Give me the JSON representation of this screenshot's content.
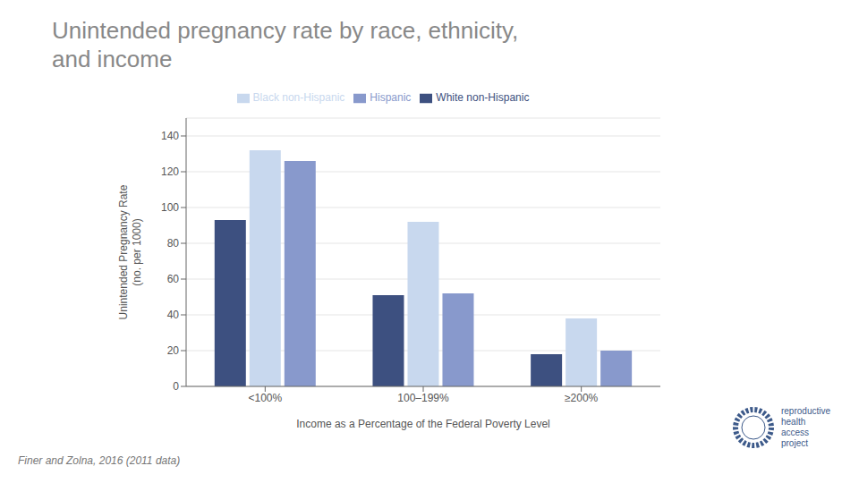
{
  "chart_data": {
    "type": "bar",
    "title": "Unintended pregnancy rate by race, ethnicity,\nand income",
    "categories": [
      "<100%",
      "100–199%",
      "≥200%"
    ],
    "series": [
      {
        "name": "White non-Hispanic",
        "color": "#3D5080",
        "values": [
          93,
          51,
          18
        ]
      },
      {
        "name": "Black non-Hispanic",
        "color": "#C8D8EE",
        "values": [
          132,
          92,
          38
        ]
      },
      {
        "name": "Hispanic",
        "color": "#8899CC",
        "values": [
          126,
          52,
          20
        ]
      }
    ],
    "xlabel": "Income as a Percentage of the Federal Poverty Level",
    "ylabel": "Unintended Pregnancy Rate\n(no. per 1000)",
    "ylim": [
      0,
      150
    ],
    "yticks": [
      0,
      20,
      40,
      60,
      80,
      100,
      120,
      140
    ],
    "grid": true,
    "legend": "top",
    "annotations": [
      "Finer and Zolna, 2016 (2011 data)",
      "reproductive",
      "health",
      "access",
      "project"
    ]
  }
}
